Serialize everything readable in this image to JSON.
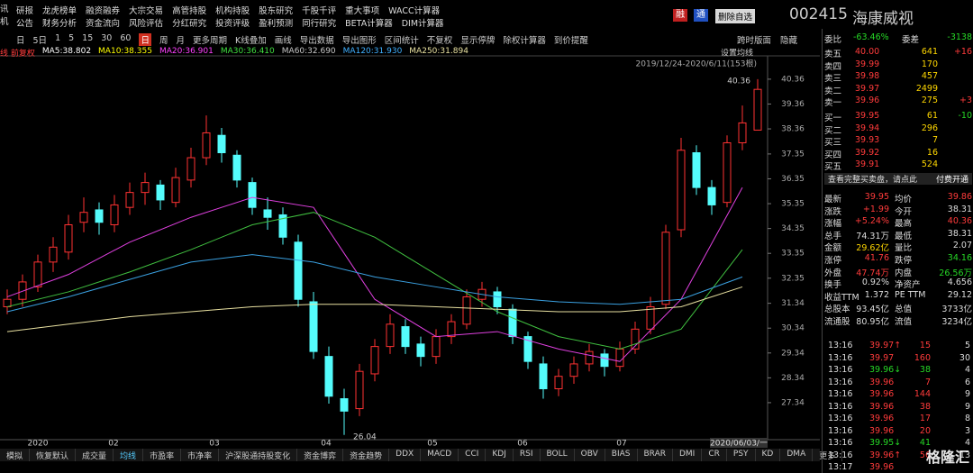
{
  "menu": {
    "side": [
      "讯",
      "机"
    ],
    "row1": [
      "研报",
      "龙虎榜单",
      "融资融券",
      "大宗交易",
      "高管持股",
      "机构持股",
      "股东研究",
      "千股千评",
      "重大事项",
      "WACC计算器"
    ],
    "row2": [
      "公告",
      "财务分析",
      "资金流向",
      "风险评估",
      "分红研究",
      "投资评级",
      "盈利预测",
      "同行研究",
      "BETA计算器",
      "DIM计算器"
    ]
  },
  "header": {
    "badges": [
      "融",
      "通"
    ],
    "button": "删除自选",
    "code": "002415",
    "name": "海康威视"
  },
  "toolbar": [
    "日",
    "5日",
    "1",
    "5",
    "15",
    "30",
    "60",
    "日",
    "周",
    "月",
    "更多周期",
    "K线叠加",
    "画线",
    "导出数据",
    "导出图形",
    "区间统计",
    "不复权",
    "显示停牌",
    "除权计算器",
    "到价提醒"
  ],
  "toolbar_right": [
    "跨时版面",
    "隐藏"
  ],
  "chart": {
    "type": "candlestick",
    "mode": "线 前复权",
    "ma_legend": [
      {
        "name": "MA5:38.802",
        "color": "#ffffff"
      },
      {
        "name": "MA10:38.355",
        "color": "#ffff00"
      },
      {
        "name": "MA20:36.901",
        "color": "#ff40ff"
      },
      {
        "name": "MA30:36.410",
        "color": "#40e040"
      },
      {
        "name": "MA60:32.690",
        "color": "#c8c8c8"
      },
      {
        "name": "MA120:31.930",
        "color": "#40b0ff"
      },
      {
        "name": "MA250:31.894",
        "color": "#e8e0a0"
      }
    ],
    "setting": "设置均线",
    "range": "2019/12/24-2020/6/11(153根)",
    "max_label": "40.36",
    "min_label": "26.04",
    "up_color": "#ff3232",
    "down_color": "#54fcfc",
    "ylim": [
      25.96,
      41.19
    ],
    "yticks": [
      40.36,
      39.36,
      38.36,
      37.35,
      36.35,
      35.35,
      34.35,
      33.35,
      32.35,
      31.34,
      30.34,
      29.34,
      28.34,
      27.34
    ],
    "candles": [
      [
        31.2,
        31.9,
        30.9,
        31.5
      ],
      [
        31.5,
        32.5,
        31.2,
        32.2
      ],
      [
        32.0,
        33.3,
        31.8,
        33.0
      ],
      [
        33.0,
        34.0,
        32.6,
        33.6
      ],
      [
        33.4,
        34.9,
        33.1,
        34.5
      ],
      [
        34.6,
        35.6,
        34.2,
        35.0
      ],
      [
        35.1,
        35.4,
        34.1,
        34.6
      ],
      [
        34.5,
        35.7,
        34.2,
        35.3
      ],
      [
        35.2,
        36.2,
        34.9,
        35.8
      ],
      [
        35.8,
        36.6,
        35.3,
        36.2
      ],
      [
        36.1,
        36.3,
        35.1,
        35.5
      ],
      [
        35.4,
        36.8,
        35.2,
        36.4
      ],
      [
        36.3,
        37.6,
        36.0,
        37.2
      ],
      [
        37.2,
        38.9,
        36.9,
        38.2
      ],
      [
        38.1,
        38.4,
        37.0,
        37.4
      ],
      [
        37.3,
        37.5,
        36.0,
        36.3
      ],
      [
        36.2,
        36.4,
        34.9,
        35.2
      ],
      [
        35.1,
        35.6,
        34.3,
        34.8
      ],
      [
        34.9,
        35.2,
        33.7,
        34.0
      ],
      [
        33.8,
        34.1,
        31.2,
        31.5
      ],
      [
        31.4,
        31.8,
        29.1,
        29.4
      ],
      [
        29.2,
        29.6,
        27.3,
        27.6
      ],
      [
        27.5,
        27.9,
        26.04,
        27.0
      ],
      [
        27.1,
        28.9,
        26.8,
        28.6
      ],
      [
        28.5,
        29.9,
        28.2,
        29.6
      ],
      [
        29.6,
        30.9,
        29.3,
        30.5
      ],
      [
        30.4,
        30.7,
        29.3,
        29.6
      ],
      [
        29.7,
        30.0,
        28.8,
        29.2
      ],
      [
        29.2,
        30.3,
        28.9,
        30.0
      ],
      [
        30.0,
        30.9,
        29.7,
        30.6
      ],
      [
        30.5,
        31.9,
        30.3,
        31.6
      ],
      [
        31.5,
        32.2,
        31.2,
        31.9
      ],
      [
        31.8,
        32.0,
        30.9,
        31.2
      ],
      [
        31.1,
        31.3,
        29.7,
        30.0
      ],
      [
        30.0,
        30.2,
        28.7,
        29.0
      ],
      [
        28.9,
        29.2,
        27.5,
        27.9
      ],
      [
        27.9,
        28.7,
        27.6,
        28.4
      ],
      [
        28.4,
        29.2,
        28.1,
        28.9
      ],
      [
        28.9,
        29.7,
        28.6,
        29.4
      ],
      [
        29.3,
        29.5,
        28.4,
        28.8
      ],
      [
        28.8,
        29.8,
        28.6,
        29.5
      ],
      [
        29.5,
        30.6,
        29.3,
        30.3
      ],
      [
        30.3,
        31.6,
        30.1,
        31.2
      ],
      [
        31.3,
        34.5,
        31.1,
        34.2
      ],
      [
        34.3,
        38.0,
        34.0,
        37.5
      ],
      [
        37.4,
        37.7,
        35.7,
        36.0
      ],
      [
        36.0,
        36.3,
        34.9,
        35.3
      ],
      [
        35.4,
        38.1,
        35.2,
        37.8
      ],
      [
        37.8,
        39.3,
        37.5,
        38.6
      ],
      [
        38.31,
        40.36,
        38.31,
        39.95
      ]
    ],
    "ma_lines": [
      {
        "color": "#e040e0",
        "values": [
          31.6,
          32.5,
          33.8,
          34.8,
          35.6,
          35.2,
          31.5,
          30.0,
          30.2,
          29.5,
          29.0,
          31.5,
          36.0
        ]
      },
      {
        "color": "#40c040",
        "values": [
          31.2,
          31.8,
          32.6,
          33.5,
          34.5,
          35.0,
          34.0,
          32.5,
          31.0,
          30.0,
          29.5,
          30.3,
          33.5
        ]
      },
      {
        "color": "#3aa0e0",
        "values": [
          31.0,
          31.6,
          32.3,
          33.0,
          33.3,
          33.0,
          32.4,
          32.0,
          31.6,
          31.4,
          31.3,
          31.5,
          32.4
        ]
      },
      {
        "color": "#e8e0a0",
        "values": [
          30.2,
          30.5,
          30.8,
          31.0,
          31.2,
          31.3,
          31.3,
          31.2,
          31.1,
          31.0,
          31.0,
          31.2,
          32.0
        ]
      }
    ],
    "x_labels": [
      "2020",
      "02",
      "03",
      "04",
      "05",
      "06",
      "07"
    ],
    "cursor_date": "2020/06/03/一"
  },
  "tabs": [
    "模拟",
    "恢复默认",
    "成交量",
    "均线",
    "市盈率",
    "市净率",
    "沪深股通持股变化",
    "资金博弈",
    "资金趋势",
    "DDX",
    "MACD",
    "CCI",
    "KDJ",
    "RSI",
    "BOLL",
    "OBV",
    "BIAS",
    "BRAR",
    "DMI",
    "CR",
    "PSY",
    "KD",
    "DMA",
    "更多"
  ],
  "panel": {
    "ratio": [
      "委比",
      "-63.46%",
      "委差",
      "-3138"
    ],
    "sells": [
      [
        "卖五",
        "40.00",
        "641",
        "+16"
      ],
      [
        "卖四",
        "39.99",
        "170",
        ""
      ],
      [
        "卖三",
        "39.98",
        "457",
        ""
      ],
      [
        "卖二",
        "39.97",
        "2499",
        ""
      ],
      [
        "卖一",
        "39.96",
        "275",
        "+3"
      ]
    ],
    "buys": [
      [
        "买一",
        "39.95",
        "61",
        "-10"
      ],
      [
        "买二",
        "39.94",
        "296",
        ""
      ],
      [
        "买三",
        "39.93",
        "7",
        ""
      ],
      [
        "买四",
        "39.92",
        "16",
        ""
      ],
      [
        "买五",
        "39.91",
        "524",
        ""
      ]
    ],
    "notice": "查看完整买卖盘，请点此",
    "notice_link": "付费开通",
    "quotes": [
      [
        "最新",
        "39.95",
        "均价",
        "39.86"
      ],
      [
        "涨跌",
        "+1.99",
        "今开",
        "38.31"
      ],
      [
        "涨幅",
        "+5.24%",
        "最高",
        "40.36"
      ],
      [
        "总手",
        "74.31万",
        "最低",
        "38.31"
      ],
      [
        "金额",
        "29.62亿",
        "量比",
        "2.07"
      ],
      [
        "涨停",
        "41.76",
        "跌停",
        "34.16"
      ],
      [
        "外盘",
        "47.74万",
        "内盘",
        "26.56万"
      ],
      [
        "换手",
        "0.92%",
        "净资产",
        "4.656"
      ],
      [
        "收益TTM",
        "1.372",
        "PE TTM",
        "29.12"
      ],
      [
        "总股本",
        "93.45亿",
        "总值",
        "3733亿"
      ],
      [
        "流通股",
        "80.95亿",
        "流值",
        "3234亿"
      ]
    ],
    "trades": [
      [
        "13:16",
        "39.97↑",
        "15",
        "5"
      ],
      [
        "13:16",
        "39.97",
        "160",
        "30"
      ],
      [
        "13:16",
        "39.96↓",
        "38",
        "4"
      ],
      [
        "13:16",
        "39.96",
        "7",
        "6"
      ],
      [
        "13:16",
        "39.96",
        "144",
        "9"
      ],
      [
        "13:16",
        "39.96",
        "38",
        "9"
      ],
      [
        "13:16",
        "39.96",
        "17",
        "8"
      ],
      [
        "13:16",
        "39.96",
        "20",
        "3"
      ],
      [
        "13:16",
        "39.95↓",
        "41",
        "4"
      ],
      [
        "13:16",
        "39.96↑",
        "56",
        "13"
      ],
      [
        "13:17",
        "39.96",
        "",
        ""
      ]
    ]
  },
  "watermark": "格隆汇"
}
